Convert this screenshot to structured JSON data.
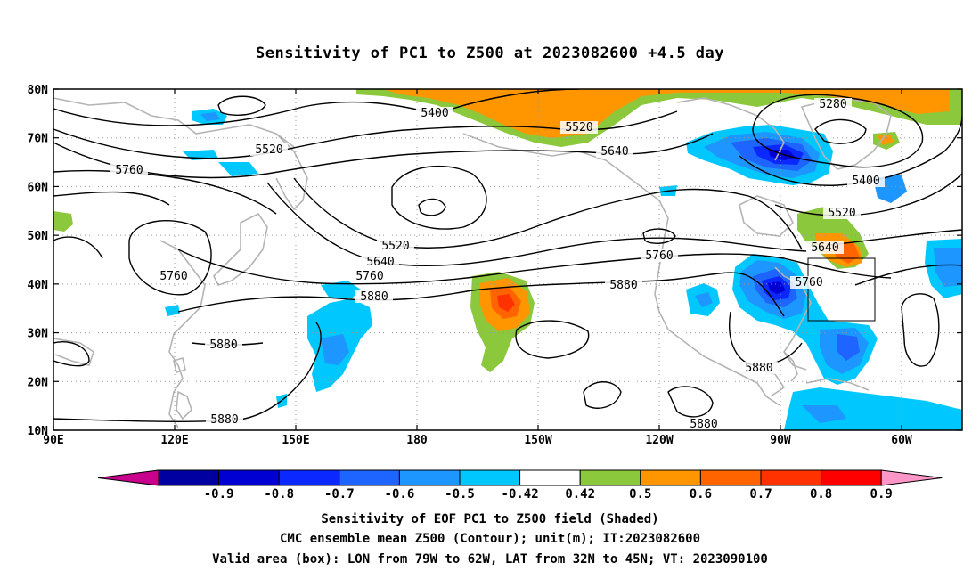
{
  "title": "Sensitivity of PC1 to Z500 at 2023082600 +4.5 day",
  "map": {
    "lat_labels": [
      "80N",
      "70N",
      "60N",
      "50N",
      "40N",
      "30N",
      "20N",
      "10N"
    ],
    "lon_labels": [
      "90E",
      "120E",
      "150E",
      "180",
      "150W",
      "120W",
      "90W",
      "60W"
    ],
    "contour_labels": [
      {
        "text": "5400"
      },
      {
        "text": "5520"
      },
      {
        "text": "5640"
      },
      {
        "text": "5280"
      },
      {
        "text": "5400"
      },
      {
        "text": "5520"
      },
      {
        "text": "5640"
      },
      {
        "text": "5760"
      },
      {
        "text": "5760"
      },
      {
        "text": "5520"
      },
      {
        "text": "5760"
      },
      {
        "text": "5520"
      },
      {
        "text": "5640"
      },
      {
        "text": "5760"
      },
      {
        "text": "5880"
      },
      {
        "text": "5760"
      },
      {
        "text": "5880"
      },
      {
        "text": "5880"
      },
      {
        "text": "5880"
      },
      {
        "text": "5880"
      },
      {
        "text": "5880"
      }
    ],
    "valid_box": {
      "lon_from": "79W",
      "lon_to": "62W",
      "lat_from": "32N",
      "lat_to": "45N"
    }
  },
  "colorbar": {
    "labels": [
      "-0.9",
      "-0.8",
      "-0.7",
      "-0.6",
      "-0.5",
      "-0.42",
      "0.42",
      "0.5",
      "0.6",
      "0.7",
      "0.8",
      "0.9"
    ],
    "colors": [
      "#c8008c",
      "#0000a0",
      "#0000d2",
      "#0a28ff",
      "#1e64ff",
      "#1e96ff",
      "#00c8ff",
      "#ffffff",
      "#8cc83c",
      "#ff9600",
      "#ff6400",
      "#ff3200",
      "#ff0000",
      "#ff96c8"
    ]
  },
  "captions": {
    "line1": "Sensitivity of EOF PC1 to Z500 field (Shaded)",
    "line2": "CMC ensemble mean Z500 (Contour); unit(m); IT:2023082600",
    "line3": "Valid area (box): LON from 79W to 62W, LAT from 32N to 45N; VT: 2023090100"
  }
}
